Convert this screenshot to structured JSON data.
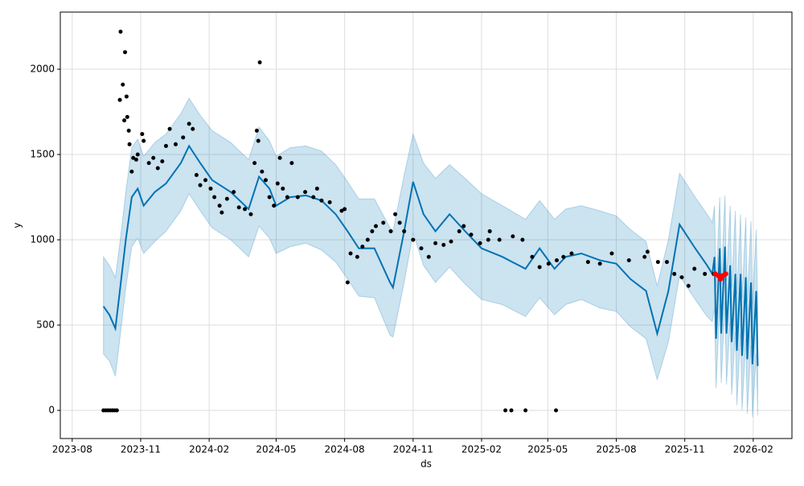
{
  "chart_data": {
    "type": "forecast",
    "xlabel": "ds",
    "ylabel": "y",
    "grid": true,
    "xlim": [
      "2023-07-16",
      "2026-03-25"
    ],
    "xticks": [
      "2023-08",
      "2023-11",
      "2024-02",
      "2024-05",
      "2024-08",
      "2024-11",
      "2025-02",
      "2025-05",
      "2025-08",
      "2025-11",
      "2026-02"
    ],
    "ylim": [
      -165,
      2335
    ],
    "yticks": [
      0,
      500,
      1000,
      1500,
      2000
    ],
    "observed": {
      "color": "#000000",
      "x": [
        "2023-09-12",
        "2023-09-15",
        "2023-09-18",
        "2023-09-21",
        "2023-09-24",
        "2023-09-27",
        "2023-09-30",
        "2023-10-04",
        "2023-10-05",
        "2023-10-08",
        "2023-10-10",
        "2023-10-11",
        "2023-10-13",
        "2023-10-14",
        "2023-10-16",
        "2023-10-17",
        "2023-10-20",
        "2023-10-22",
        "2023-10-26",
        "2023-10-28",
        "2023-11-03",
        "2023-11-05",
        "2023-11-12",
        "2023-11-18",
        "2023-11-24",
        "2023-11-30",
        "2023-12-05",
        "2023-12-10",
        "2023-12-18",
        "2023-12-28",
        "2024-01-05",
        "2024-01-10",
        "2024-01-15",
        "2024-01-20",
        "2024-01-27",
        "2024-02-03",
        "2024-02-08",
        "2024-02-15",
        "2024-02-18",
        "2024-02-25",
        "2024-03-05",
        "2024-03-12",
        "2024-03-20",
        "2024-03-28",
        "2024-04-02",
        "2024-04-05",
        "2024-04-07",
        "2024-04-09",
        "2024-04-12",
        "2024-04-17",
        "2024-04-22",
        "2024-04-28",
        "2024-05-03",
        "2024-05-06",
        "2024-05-10",
        "2024-05-16",
        "2024-05-22",
        "2024-05-30",
        "2024-06-09",
        "2024-06-20",
        "2024-06-25",
        "2024-07-01",
        "2024-07-12",
        "2024-07-28",
        "2024-08-01",
        "2024-08-05",
        "2024-08-09",
        "2024-08-18",
        "2024-08-25",
        "2024-09-01",
        "2024-09-07",
        "2024-09-12",
        "2024-09-22",
        "2024-10-02",
        "2024-10-08",
        "2024-10-14",
        "2024-10-20",
        "2024-11-01",
        "2024-11-12",
        "2024-11-22",
        "2024-12-01",
        "2024-12-12",
        "2024-12-22",
        "2025-01-02",
        "2025-01-08",
        "2025-01-18",
        "2025-01-30",
        "2025-02-10",
        "2025-02-12",
        "2025-02-25",
        "2025-03-05",
        "2025-03-13",
        "2025-03-15",
        "2025-03-28",
        "2025-04-01",
        "2025-04-10",
        "2025-04-20",
        "2025-05-02",
        "2025-05-12",
        "2025-05-13",
        "2025-05-22",
        "2025-06-02",
        "2025-06-24",
        "2025-07-10",
        "2025-07-26",
        "2025-08-18",
        "2025-09-08",
        "2025-09-12",
        "2025-09-26",
        "2025-10-08",
        "2025-10-18",
        "2025-10-28",
        "2025-11-06",
        "2025-11-14",
        "2025-11-28",
        "2025-12-10"
      ],
      "y": [
        0,
        0,
        0,
        0,
        0,
        0,
        0,
        1820,
        2220,
        1910,
        1700,
        2100,
        1840,
        1720,
        1640,
        1560,
        1400,
        1480,
        1470,
        1500,
        1620,
        1580,
        1450,
        1480,
        1420,
        1460,
        1550,
        1650,
        1560,
        1600,
        1680,
        1650,
        1380,
        1320,
        1350,
        1300,
        1250,
        1200,
        1160,
        1240,
        1280,
        1190,
        1180,
        1150,
        1450,
        1640,
        1580,
        2040,
        1400,
        1350,
        1250,
        1200,
        1330,
        1480,
        1300,
        1250,
        1450,
        1250,
        1280,
        1250,
        1300,
        1230,
        1220,
        1170,
        1180,
        750,
        920,
        900,
        960,
        1000,
        1050,
        1080,
        1100,
        1050,
        1150,
        1100,
        1050,
        1000,
        950,
        900,
        980,
        970,
        990,
        1050,
        1080,
        1030,
        980,
        1000,
        1050,
        1000,
        0,
        0,
        1020,
        1000,
        0,
        900,
        840,
        860,
        0,
        880,
        900,
        920,
        870,
        860,
        920,
        880,
        900,
        930,
        870,
        870,
        800,
        780,
        730,
        830,
        800,
        800
      ]
    },
    "holdout": {
      "color": "#ff0000",
      "x": [
        "2025-12-12",
        "2025-12-16",
        "2025-12-19",
        "2025-12-22",
        "2025-12-26"
      ],
      "y": [
        800,
        790,
        770,
        790,
        800
      ]
    },
    "forecast": {
      "color": "#0072B2",
      "x": [
        "2023-09-12",
        "2023-09-20",
        "2023-09-28",
        "2023-10-04",
        "2023-10-12",
        "2023-10-20",
        "2023-10-28",
        "2023-11-05",
        "2023-11-20",
        "2023-12-05",
        "2023-12-25",
        "2024-01-05",
        "2024-01-20",
        "2024-02-05",
        "2024-03-01",
        "2024-03-25",
        "2024-04-08",
        "2024-04-22",
        "2024-05-01",
        "2024-05-20",
        "2024-06-10",
        "2024-07-01",
        "2024-07-20",
        "2024-08-05",
        "2024-08-20",
        "2024-09-10",
        "2024-10-01",
        "2024-10-05",
        "2024-10-20",
        "2024-11-01",
        "2024-11-15",
        "2024-12-01",
        "2024-12-20",
        "2025-01-10",
        "2025-02-01",
        "2025-03-01",
        "2025-04-01",
        "2025-04-20",
        "2025-05-10",
        "2025-05-25",
        "2025-06-15",
        "2025-07-10",
        "2025-08-01",
        "2025-08-20",
        "2025-09-10",
        "2025-09-25",
        "2025-10-10",
        "2025-10-25",
        "2025-11-15",
        "2025-12-01",
        "2025-12-08",
        "2025-12-11",
        "2025-12-13",
        "2025-12-18",
        "2025-12-20",
        "2025-12-25",
        "2025-12-27",
        "2026-01-01",
        "2026-01-03",
        "2026-01-08",
        "2026-01-10",
        "2026-01-15",
        "2026-01-17",
        "2026-01-22",
        "2026-01-24",
        "2026-01-29",
        "2026-01-31",
        "2026-02-05",
        "2026-02-07"
      ],
      "yhat": [
        610,
        560,
        480,
        700,
        1000,
        1250,
        1300,
        1200,
        1280,
        1330,
        1450,
        1550,
        1450,
        1350,
        1280,
        1180,
        1370,
        1300,
        1200,
        1250,
        1260,
        1230,
        1150,
        1050,
        950,
        950,
        750,
        720,
        1050,
        1340,
        1150,
        1050,
        1150,
        1050,
        950,
        900,
        830,
        950,
        830,
        900,
        920,
        880,
        860,
        770,
        700,
        450,
        700,
        1090,
        950,
        850,
        800,
        900,
        420,
        950,
        450,
        960,
        450,
        850,
        400,
        800,
        350,
        800,
        320,
        780,
        300,
        750,
        270,
        700,
        260
      ],
      "yhat_lower": [
        330,
        290,
        200,
        420,
        720,
        960,
        1010,
        920,
        990,
        1050,
        1170,
        1270,
        1170,
        1070,
        1000,
        900,
        1080,
        1010,
        920,
        960,
        980,
        940,
        870,
        770,
        670,
        660,
        440,
        430,
        750,
        1040,
        850,
        750,
        840,
        740,
        650,
        620,
        550,
        660,
        560,
        620,
        650,
        600,
        580,
        490,
        420,
        180,
        400,
        790,
        650,
        550,
        520,
        600,
        130,
        620,
        160,
        640,
        150,
        520,
        90,
        460,
        30,
        450,
        0,
        420,
        -20,
        380,
        -40,
        330,
        -30
      ],
      "yhat_upper": [
        900,
        850,
        780,
        980,
        1280,
        1540,
        1590,
        1490,
        1570,
        1620,
        1740,
        1830,
        1730,
        1640,
        1570,
        1470,
        1660,
        1580,
        1490,
        1540,
        1550,
        1520,
        1440,
        1340,
        1240,
        1240,
        1070,
        1050,
        1380,
        1620,
        1450,
        1360,
        1440,
        1360,
        1270,
        1200,
        1120,
        1230,
        1120,
        1180,
        1200,
        1170,
        1140,
        1060,
        990,
        730,
        1000,
        1390,
        1250,
        1150,
        1100,
        1200,
        720,
        1250,
        740,
        1260,
        760,
        1200,
        720,
        1170,
        680,
        1150,
        660,
        1130,
        640,
        1110,
        620,
        1060,
        600
      ]
    }
  }
}
